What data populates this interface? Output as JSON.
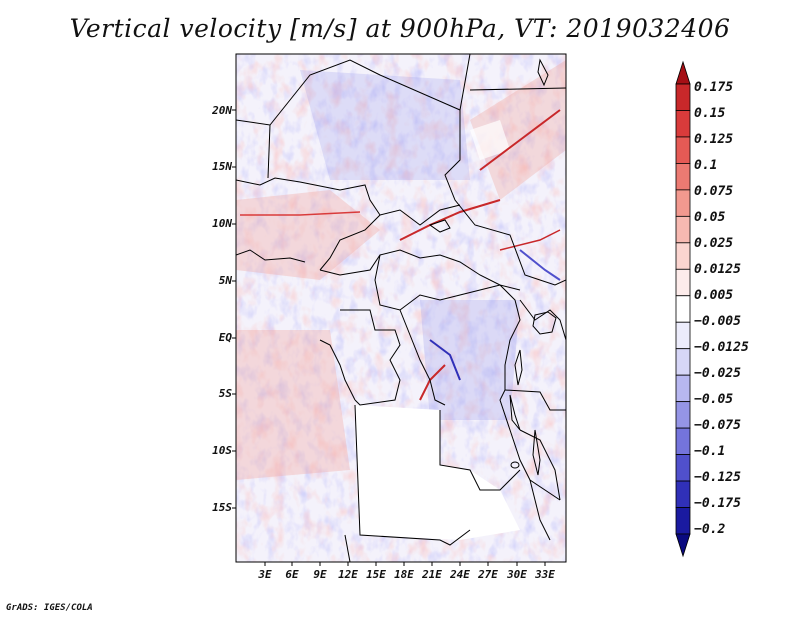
{
  "title": "Vertical velocity [m/s] at 900hPa, VT: 2019032406",
  "credit": "GrADS: IGES/COLA",
  "lat_labels": [
    "20N",
    "15N",
    "10N",
    "5N",
    "EQ",
    "5S",
    "10S",
    "15S"
  ],
  "lon_labels": [
    "3E",
    "6E",
    "9E",
    "12E",
    "15E",
    "18E",
    "21E",
    "24E",
    "27E",
    "30E",
    "33E"
  ],
  "colorbar": {
    "labels": [
      "0.175",
      "0.15",
      "0.125",
      "0.1",
      "0.075",
      "0.05",
      "0.025",
      "0.0125",
      "0.005",
      "−0.005",
      "−0.0125",
      "−0.025",
      "−0.05",
      "−0.075",
      "−0.1",
      "−0.125",
      "−0.175",
      "−0.2"
    ],
    "colors": [
      "#a50f15",
      "#c8282a",
      "#d93b3b",
      "#e55a55",
      "#ec7a72",
      "#f2998f",
      "#f7b9b1",
      "#fbd5d0",
      "#fdeceb",
      "#ffffff",
      "#ececfb",
      "#d6d6f7",
      "#b7b7f0",
      "#9595e6",
      "#7474dc",
      "#5050cc",
      "#3030b8",
      "#1a1aa0",
      "#0a0a80"
    ]
  }
}
